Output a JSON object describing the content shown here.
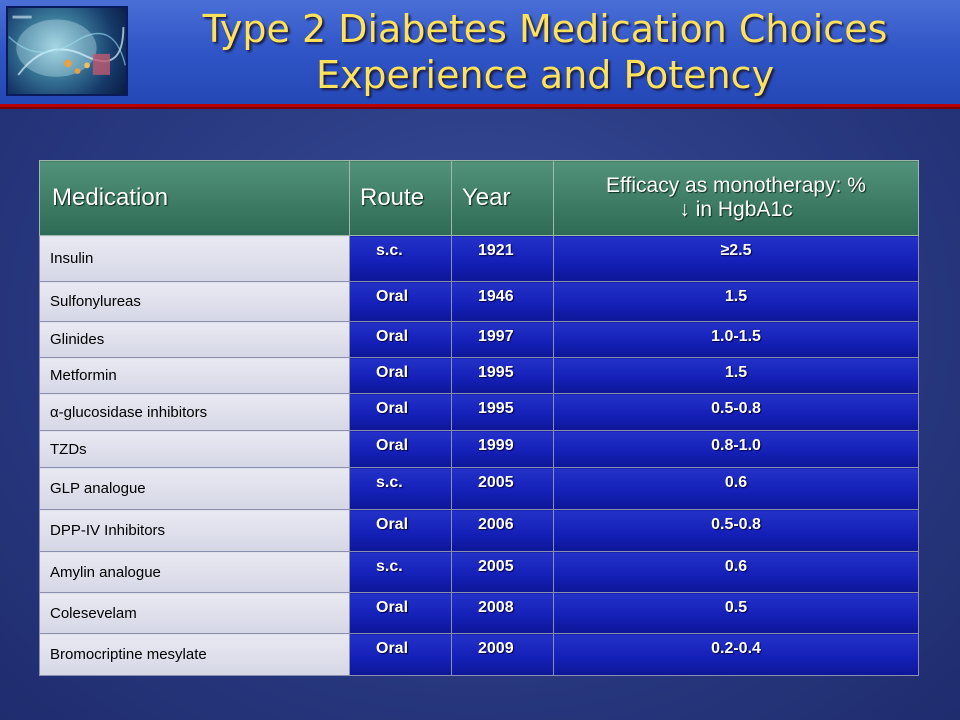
{
  "slide": {
    "title_line1": "Type 2 Diabetes Medication Choices",
    "title_line2": "Experience and Potency"
  },
  "table": {
    "headers": {
      "medication": "Medication",
      "route": "Route",
      "year": "Year",
      "efficacy_line1": "Efficacy as monotherapy: %",
      "efficacy_line2": "↓ in HgbA1c"
    },
    "rows": [
      {
        "medication": "Insulin",
        "route": "s.c.",
        "year": "1921",
        "efficacy": "≥2.5"
      },
      {
        "medication": "Sulfonylureas",
        "route": "Oral",
        "year": "1946",
        "efficacy": "1.5"
      },
      {
        "medication": "Glinides",
        "route": "Oral",
        "year": "1997",
        "efficacy": "1.0-1.5"
      },
      {
        "medication": "Metformin",
        "route": "Oral",
        "year": "1995",
        "efficacy": "1.5"
      },
      {
        "medication": "α-glucosidase inhibitors",
        "route": "Oral",
        "year": "1995",
        "efficacy": "0.5-0.8"
      },
      {
        "medication": "TZDs",
        "route": "Oral",
        "year": "1999",
        "efficacy": "0.8-1.0"
      },
      {
        "medication": "GLP analogue",
        "route": "s.c.",
        "year": "2005",
        "efficacy": "0.6"
      },
      {
        "medication": "DPP-IV Inhibitors",
        "route": "Oral",
        "year": "2006",
        "efficacy": "0.5-0.8"
      },
      {
        "medication": "Amylin analogue",
        "route": "s.c.",
        "year": "2005",
        "efficacy": "0.6"
      },
      {
        "medication": "Colesevelam",
        "route": "Oral",
        "year": "2008",
        "efficacy": "0.5"
      },
      {
        "medication": "Bromocriptine mesylate",
        "route": "Oral",
        "year": "2009",
        "efficacy": "0.2-0.4"
      }
    ]
  },
  "colors": {
    "title_text": "#ffe25a",
    "banner": "#2f55c6",
    "banner_border": "#b80000",
    "header_bg": "#3f7e67",
    "value_cell_bg": "#1420b8",
    "name_cell_bg": "#dcdcea"
  }
}
